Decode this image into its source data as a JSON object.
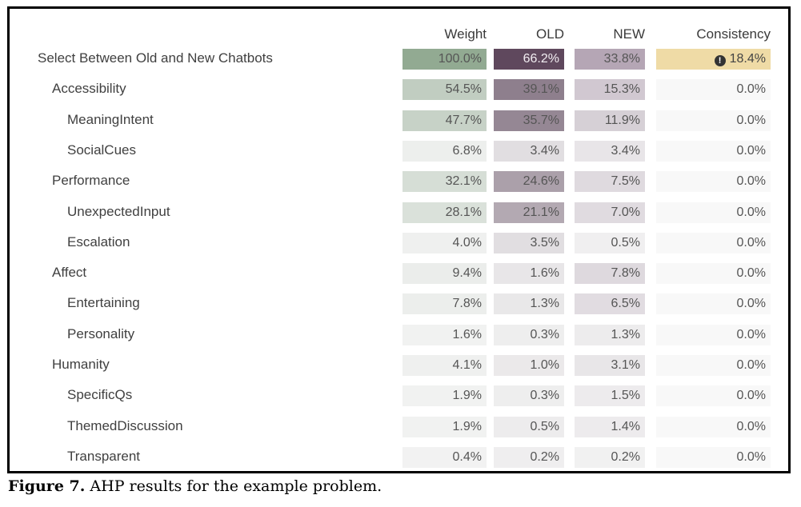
{
  "table": {
    "headers": {
      "weight": "Weight",
      "old": "OLD",
      "new": "NEW",
      "consistency": "Consistency"
    },
    "rows": [
      {
        "label": "Select Between Old and New Chatbots",
        "level": 0,
        "weight": "100.0%",
        "old": "66.2%",
        "new": "33.8%",
        "consistency": "18.4%",
        "warning": true
      },
      {
        "label": "Accessibility",
        "level": 1,
        "weight": "54.5%",
        "old": "39.1%",
        "new": "15.3%",
        "consistency": "0.0%"
      },
      {
        "label": "MeaningIntent",
        "level": 2,
        "weight": "47.7%",
        "old": "35.7%",
        "new": "11.9%",
        "consistency": "0.0%"
      },
      {
        "label": "SocialCues",
        "level": 2,
        "weight": "6.8%",
        "old": "3.4%",
        "new": "3.4%",
        "consistency": "0.0%"
      },
      {
        "label": "Performance",
        "level": 1,
        "weight": "32.1%",
        "old": "24.6%",
        "new": "7.5%",
        "consistency": "0.0%"
      },
      {
        "label": "UnexpectedInput",
        "level": 2,
        "weight": "28.1%",
        "old": "21.1%",
        "new": "7.0%",
        "consistency": "0.0%"
      },
      {
        "label": "Escalation",
        "level": 2,
        "weight": "4.0%",
        "old": "3.5%",
        "new": "0.5%",
        "consistency": "0.0%"
      },
      {
        "label": "Affect",
        "level": 1,
        "weight": "9.4%",
        "old": "1.6%",
        "new": "7.8%",
        "consistency": "0.0%"
      },
      {
        "label": "Entertaining",
        "level": 2,
        "weight": "7.8%",
        "old": "1.3%",
        "new": "6.5%",
        "consistency": "0.0%"
      },
      {
        "label": "Personality",
        "level": 2,
        "weight": "1.6%",
        "old": "0.3%",
        "new": "1.3%",
        "consistency": "0.0%"
      },
      {
        "label": "Humanity",
        "level": 1,
        "weight": "4.1%",
        "old": "1.0%",
        "new": "3.1%",
        "consistency": "0.0%"
      },
      {
        "label": "SpecificQs",
        "level": 2,
        "weight": "1.9%",
        "old": "0.3%",
        "new": "1.5%",
        "consistency": "0.0%"
      },
      {
        "label": "ThemedDiscussion",
        "level": 2,
        "weight": "1.9%",
        "old": "0.5%",
        "new": "1.4%",
        "consistency": "0.0%"
      },
      {
        "label": "Transparent",
        "level": 2,
        "weight": "0.4%",
        "old": "0.2%",
        "new": "0.2%",
        "consistency": "0.0%"
      }
    ]
  },
  "colors": {
    "weight": "#8fa88f",
    "old": "#5a4358",
    "new": "#b3a4b3",
    "consistency_warning": "#efdba6",
    "neutral": "#f4f4f4"
  },
  "icons": {
    "warning": "exclamation-circle-icon"
  },
  "caption": {
    "label": "Figure 7.",
    "text": " AHP results for the example problem."
  }
}
